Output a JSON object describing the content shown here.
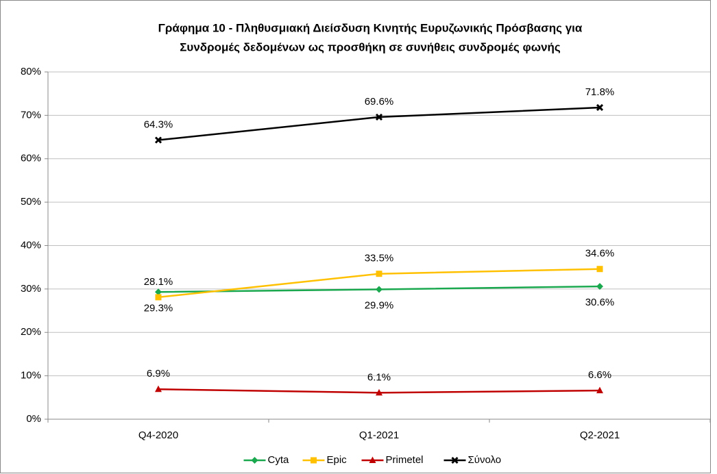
{
  "chart_data": {
    "type": "line",
    "title": [
      "Γράφημα 10 - Πληθυσμιακή Διείσδυση Κινητής Ευρυζωνικής Πρόσβασης για",
      "Συνδρομές δεδομένων ως προσθήκη σε συνήθεις συνδρομές φωνής"
    ],
    "categories": [
      "Q4-2020",
      "Q1-2021",
      "Q2-2021"
    ],
    "series": [
      {
        "name": "Cyta",
        "color": "#1aa84f",
        "marker": "diamond",
        "label_position": "below",
        "values": [
          29.3,
          29.9,
          30.6
        ],
        "value_labels": [
          "29.3%",
          "29.9%",
          "30.6%"
        ]
      },
      {
        "name": "Epic",
        "color": "#ffc000",
        "marker": "square",
        "label_position": "above",
        "values": [
          28.1,
          33.5,
          34.6
        ],
        "value_labels": [
          "28.1%",
          "33.5%",
          "34.6%"
        ]
      },
      {
        "name": "Primetel",
        "color": "#c00000",
        "marker": "triangle",
        "label_position": "above",
        "values": [
          6.9,
          6.1,
          6.6
        ],
        "value_labels": [
          "6.9%",
          "6.1%",
          "6.6%"
        ]
      },
      {
        "name": "Σύνολο",
        "color": "#000000",
        "marker": "x",
        "label_position": "above",
        "values": [
          64.3,
          69.6,
          71.8
        ],
        "value_labels": [
          "64.3%",
          "69.6%",
          "71.8%"
        ]
      }
    ],
    "ylim": [
      0,
      80
    ],
    "yticks": [
      {
        "value": 0,
        "label": "0%"
      },
      {
        "value": 10,
        "label": "10%"
      },
      {
        "value": 20,
        "label": "20%"
      },
      {
        "value": 30,
        "label": "30%"
      },
      {
        "value": 40,
        "label": "40%"
      },
      {
        "value": 50,
        "label": "50%"
      },
      {
        "value": 60,
        "label": "60%"
      },
      {
        "value": 70,
        "label": "70%"
      },
      {
        "value": 80,
        "label": "80%"
      }
    ],
    "grid": true,
    "legend": "bottom"
  }
}
